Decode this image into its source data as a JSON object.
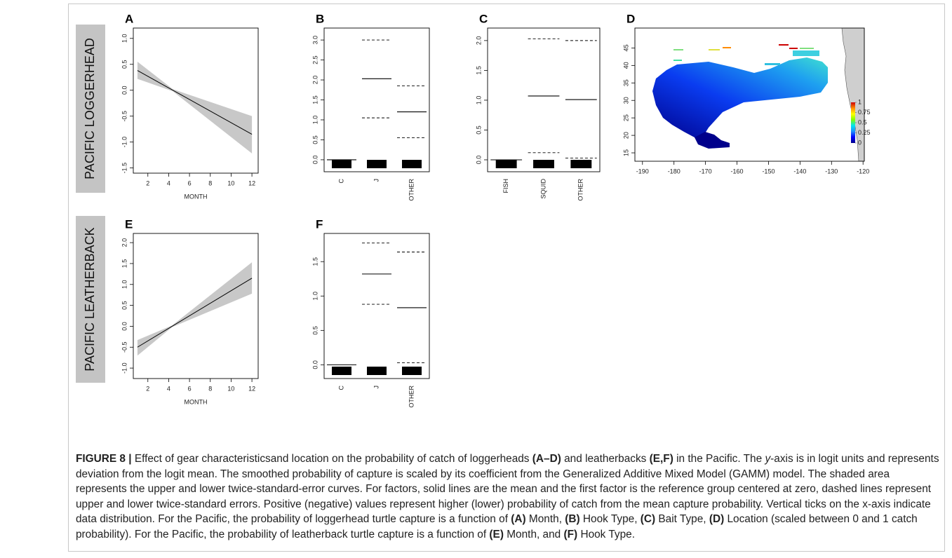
{
  "figure": {
    "row_labels": [
      "PACIFIC LOGGERHEAD",
      "PACIFIC LEATHERBACK"
    ],
    "caption": [
      {
        "text": "FIGURE 8 |",
        "style": "bold"
      },
      {
        "text": " Effect of gear characteristicsand location on the probability of catch of loggerheads "
      },
      {
        "text": "(A–D)",
        "style": "bold"
      },
      {
        "text": " and leatherbacks "
      },
      {
        "text": "(E,F)",
        "style": "bold"
      },
      {
        "text": " in the Pacific. The "
      },
      {
        "text": "y",
        "style": "italic"
      },
      {
        "text": "-axis is in logit units and represents deviation from the logit mean. The smoothed probability of capture is scaled by its coefficient from the Generalized Additive Mixed Model (GAMM) model. The shaded area represents the upper and lower twice-standard-error curves. For factors, solid lines are the mean and the first factor is the reference group centered at zero, dashed lines represent upper and lower twice-standard errors. Positive (negative) values represent higher (lower) probability of catch from the mean capture probability. Vertical ticks on the x-axis indicate data distribution. For the Pacific, the probability of loggerhead turtle capture is a function of "
      },
      {
        "text": "(A)",
        "style": "bold"
      },
      {
        "text": " Month, "
      },
      {
        "text": "(B)",
        "style": "bold"
      },
      {
        "text": " Hook Type, "
      },
      {
        "text": "(C)",
        "style": "bold"
      },
      {
        "text": " Bait Type, "
      },
      {
        "text": "(D)",
        "style": "bold"
      },
      {
        "text": " Location (scaled between 0 and 1 catch probability). For the Pacific, the probability of leatherback turtle capture is a function of "
      },
      {
        "text": "(E)",
        "style": "bold"
      },
      {
        "text": " Month, and "
      },
      {
        "text": "(F)",
        "style": "bold"
      },
      {
        "text": " Hook Type."
      }
    ]
  },
  "chart_data": [
    {
      "type": "line",
      "title": "A",
      "xlabel": "MONTH",
      "x": [
        1,
        4.4,
        12
      ],
      "series": [
        {
          "values": [
            0.38,
            0,
            -0.85
          ],
          "color": "#000000"
        }
      ],
      "band": {
        "lower": [
          0.22,
          -0.02,
          -1.22
        ],
        "upper": [
          0.55,
          0.02,
          -0.5
        ],
        "color": "#c8c8c8"
      },
      "xlim": [
        0.6,
        12.6
      ],
      "ylim": [
        -1.6,
        1.2
      ],
      "xticks": [
        2,
        4,
        6,
        8,
        10,
        12
      ],
      "yticks": [
        -1.5,
        {
          "value": -1,
          "label": "-1.0"
        },
        -0.5,
        {
          "value": 0,
          "label": "0.0"
        },
        0.5,
        {
          "value": 1,
          "label": "1.0"
        }
      ]
    },
    {
      "type": "factor",
      "title": "B",
      "categories": [
        "C",
        "J",
        "OTHER"
      ],
      "mean": [
        0,
        2.03,
        1.2
      ],
      "upper": [
        null,
        3.0,
        1.85
      ],
      "lower": [
        null,
        1.05,
        0.55
      ],
      "color": "#000000",
      "rug": true,
      "ylim": [
        -0.3,
        3.3
      ],
      "yticks": [
        {
          "value": 0,
          "label": "0.0"
        },
        0.5,
        {
          "value": 1,
          "label": "1.0"
        },
        1.5,
        {
          "value": 2,
          "label": "2.0"
        },
        2.5,
        {
          "value": 3,
          "label": "3.0"
        }
      ]
    },
    {
      "type": "factor",
      "title": "C",
      "categories": [
        "FISH",
        "SQUID",
        "OTHER"
      ],
      "mean": [
        0,
        1.07,
        1.01
      ],
      "upper": [
        null,
        2.03,
        2.0
      ],
      "lower": [
        null,
        0.12,
        0.03
      ],
      "color": "#000000",
      "rug": true,
      "ylim": [
        -0.2,
        2.21
      ],
      "yticks": [
        {
          "value": 0,
          "label": "0.0"
        },
        0.5,
        {
          "value": 1,
          "label": "1.0"
        },
        1.5,
        {
          "value": 2,
          "label": "2.0"
        }
      ]
    },
    {
      "type": "heatmap",
      "title": "D",
      "xlim": [
        -192.4,
        -119.6
      ],
      "ylim": [
        12.6,
        50.7
      ],
      "xticks": [
        -190,
        -180,
        -170,
        -160,
        -150,
        -140,
        -130,
        -120
      ],
      "yticks": [
        15,
        20,
        25,
        30,
        35,
        40,
        45
      ],
      "colorbar": {
        "ticks": [
          0,
          0.25,
          0.5,
          0.75,
          1
        ],
        "colors": [
          "#00008b",
          "#0000ff",
          "#1e90ff",
          "#00e5ee",
          "#7fff00",
          "#ffff00",
          "#ff8c00",
          "#cc0000"
        ]
      }
    },
    {
      "type": "line",
      "title": "E",
      "xlabel": "MONTH",
      "x": [
        1,
        4.33,
        12
      ],
      "series": [
        {
          "values": [
            -0.5,
            0,
            1.15
          ],
          "color": "#000000"
        }
      ],
      "band": {
        "lower": [
          -0.7,
          -0.02,
          0.78
        ],
        "upper": [
          -0.33,
          0.02,
          1.53
        ],
        "color": "#c8c8c8"
      },
      "xlim": [
        0.6,
        12.6
      ],
      "ylim": [
        -1.25,
        2.22
      ],
      "xticks": [
        2,
        4,
        6,
        8,
        10,
        12
      ],
      "yticks": [
        {
          "value": -1,
          "label": "-1.0"
        },
        -0.5,
        {
          "value": 0,
          "label": "0.0"
        },
        0.5,
        {
          "value": 1,
          "label": "1.0"
        },
        1.5,
        {
          "value": 2,
          "label": "2.0"
        }
      ]
    },
    {
      "type": "factor",
      "title": "F",
      "categories": [
        "C",
        "J",
        "OTHER"
      ],
      "mean": [
        0,
        1.32,
        0.83
      ],
      "upper": [
        null,
        1.77,
        1.64
      ],
      "lower": [
        null,
        0.88,
        0.03
      ],
      "color": "#000000",
      "rug": true,
      "ylim": [
        -0.2,
        1.91
      ],
      "yticks": [
        {
          "value": 0,
          "label": "0.0"
        },
        0.5,
        {
          "value": 1,
          "label": "1.0"
        },
        1.5
      ]
    }
  ]
}
